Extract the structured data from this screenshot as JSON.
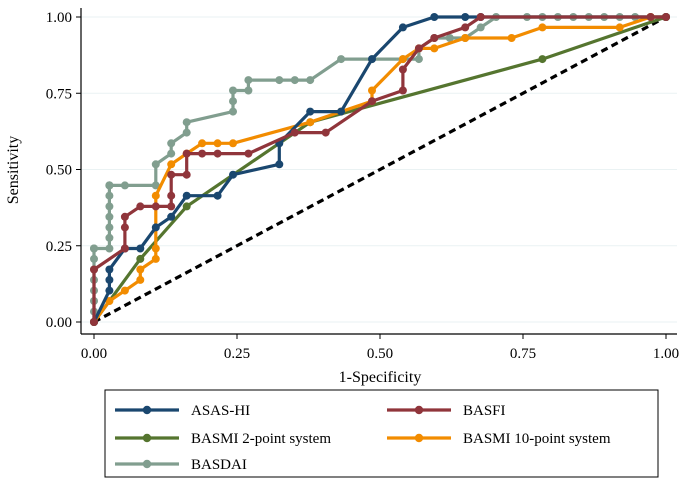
{
  "chart_data": {
    "type": "line",
    "title": "",
    "xlabel": "1-Specificity",
    "ylabel": "Sensitivity",
    "xlim": [
      0,
      1
    ],
    "ylim": [
      0,
      1
    ],
    "xticks": [
      "0.00",
      "0.25",
      "0.50",
      "0.75",
      "1.00"
    ],
    "yticks": [
      "0.00",
      "0.25",
      "0.50",
      "0.75",
      "1.00"
    ],
    "legend_position": "bottom",
    "reference_line": {
      "name": "Reference",
      "x": [
        0,
        1
      ],
      "y": [
        0,
        1
      ],
      "color": "#000000",
      "style": "dashed"
    },
    "series": [
      {
        "name": "BASDAI",
        "color": "#819e8f",
        "x": [
          0,
          0,
          0,
          0,
          0,
          0,
          0,
          0,
          0,
          0.027,
          0.027,
          0.027,
          0.027,
          0.027,
          0.027,
          0.027,
          0.027,
          0.027,
          0.054,
          0.108,
          0.108,
          0.135,
          0.135,
          0.162,
          0.162,
          0.243,
          0.243,
          0.243,
          0.27,
          0.27,
          0.324,
          0.351,
          0.378,
          0.432,
          0.486,
          0.54,
          0.568,
          0.568,
          0.595,
          0.622,
          0.649,
          0.676,
          0.703,
          0.757,
          0.784,
          0.811,
          0.838,
          0.865,
          0.892,
          0.919,
          0.946,
          0.973,
          1.0
        ],
        "y": [
          0,
          0.034,
          0.069,
          0.103,
          0.138,
          0.172,
          0.207,
          0.241,
          0.241,
          0.241,
          0.276,
          0.31,
          0.345,
          0.379,
          0.414,
          0.448,
          0.448,
          0.448,
          0.448,
          0.448,
          0.517,
          0.552,
          0.586,
          0.621,
          0.655,
          0.69,
          0.724,
          0.759,
          0.759,
          0.793,
          0.793,
          0.793,
          0.793,
          0.862,
          0.862,
          0.862,
          0.862,
          0.897,
          0.931,
          0.931,
          0.931,
          0.966,
          1.0,
          1.0,
          1.0,
          1.0,
          1.0,
          1.0,
          1.0,
          1.0,
          1.0,
          1.0,
          1.0
        ]
      },
      {
        "name": "BASMI 2-point system",
        "color": "#55752f",
        "x": [
          0,
          0.081,
          0.162,
          0.378,
          0.784,
          1.0
        ],
        "y": [
          0,
          0.207,
          0.379,
          0.655,
          0.862,
          1.0
        ]
      },
      {
        "name": "BASMI 10-point system",
        "color": "#f28c00",
        "x": [
          0,
          0.027,
          0.054,
          0.081,
          0.081,
          0.108,
          0.108,
          0.108,
          0.135,
          0.162,
          0.189,
          0.216,
          0.243,
          0.378,
          0.432,
          0.486,
          0.486,
          0.54,
          0.568,
          0.595,
          0.649,
          0.73,
          0.784,
          0.919,
          0.973,
          1.0
        ],
        "y": [
          0,
          0.069,
          0.103,
          0.138,
          0.172,
          0.207,
          0.241,
          0.414,
          0.517,
          0.552,
          0.586,
          0.586,
          0.586,
          0.655,
          0.69,
          0.724,
          0.759,
          0.862,
          0.897,
          0.897,
          0.931,
          0.931,
          0.966,
          0.966,
          1.0,
          1.0
        ]
      },
      {
        "name": "ASAS-HI",
        "color": "#1a476f",
        "x": [
          0,
          0.027,
          0.027,
          0.027,
          0.054,
          0.081,
          0.108,
          0.135,
          0.162,
          0.216,
          0.243,
          0.324,
          0.324,
          0.378,
          0.432,
          0.486,
          0.54,
          0.595,
          0.649,
          0.676,
          1.0
        ],
        "y": [
          0,
          0.103,
          0.138,
          0.172,
          0.241,
          0.241,
          0.31,
          0.345,
          0.414,
          0.414,
          0.483,
          0.517,
          0.586,
          0.69,
          0.69,
          0.862,
          0.966,
          1.0,
          1.0,
          1.0,
          1.0
        ]
      },
      {
        "name": "BASFI",
        "color": "#90353b",
        "x": [
          0,
          0,
          0.054,
          0.054,
          0.054,
          0.081,
          0.108,
          0.135,
          0.135,
          0.135,
          0.162,
          0.162,
          0.189,
          0.216,
          0.27,
          0.351,
          0.405,
          0.486,
          0.54,
          0.54,
          0.568,
          0.595,
          0.649,
          0.676,
          0.973,
          1.0
        ],
        "y": [
          0,
          0.172,
          0.241,
          0.31,
          0.345,
          0.379,
          0.379,
          0.379,
          0.414,
          0.483,
          0.483,
          0.552,
          0.552,
          0.552,
          0.552,
          0.621,
          0.621,
          0.724,
          0.759,
          0.828,
          0.897,
          0.931,
          0.966,
          1.0,
          1.0,
          1.0
        ]
      }
    ]
  },
  "legend": {
    "items": [
      {
        "label": "ASAS-HI",
        "color": "#1a476f"
      },
      {
        "label": "BASFI",
        "color": "#90353b"
      },
      {
        "label": "BASMI 2-point system",
        "color": "#55752f"
      },
      {
        "label": "BASMI 10-point system",
        "color": "#f28c00"
      },
      {
        "label": "BASDAI",
        "color": "#819e8f"
      }
    ]
  }
}
